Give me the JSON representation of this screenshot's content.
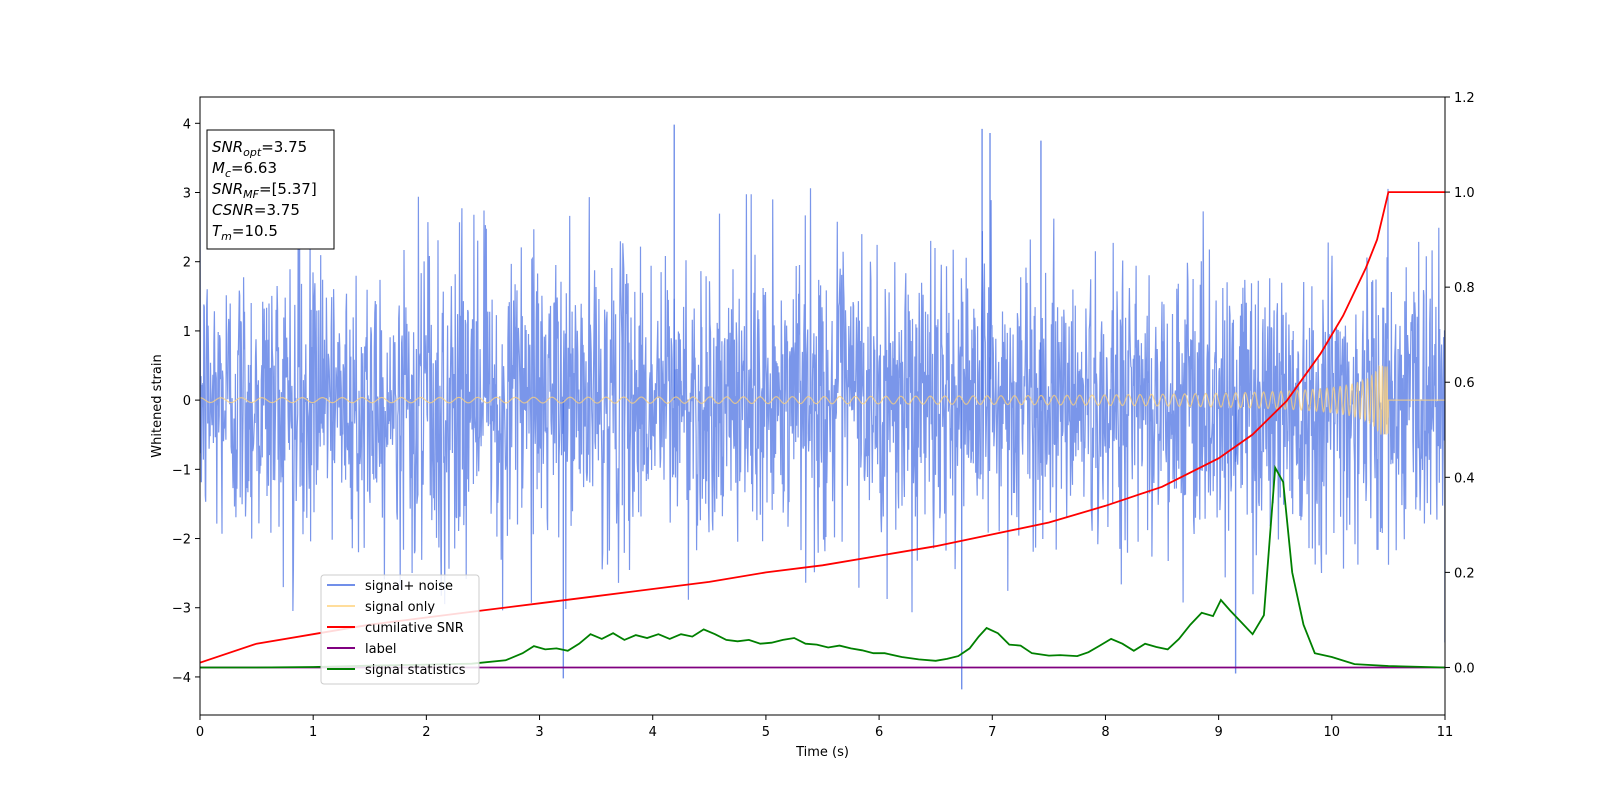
{
  "chart_data": {
    "type": "line",
    "title": "",
    "xlabel": "Time (s)",
    "ylabel": "Whitened strain",
    "xlim": [
      0,
      11
    ],
    "ylim_left": [
      -4.55,
      4.38
    ],
    "ylim_right": [
      -0.1,
      1.2
    ],
    "x_ticks": [
      "0",
      "1",
      "2",
      "3",
      "4",
      "5",
      "6",
      "7",
      "8",
      "9",
      "10",
      "11"
    ],
    "y_ticks_left": [
      "−4",
      "−3",
      "−2",
      "−1",
      "0",
      "1",
      "2",
      "3",
      "4"
    ],
    "y_ticks_right": [
      "0.0",
      "0.2",
      "0.4",
      "0.6",
      "0.8",
      "1.0",
      "1.2"
    ],
    "grid": false,
    "legend_position": "lower-left",
    "annotation": {
      "lines": [
        {
          "base": "SNR",
          "sub": "opt",
          "rest": "=3.75"
        },
        {
          "base": "M",
          "sub": "c",
          "rest": "=6.63"
        },
        {
          "base": "SNR",
          "sub": "MF",
          "rest": "=[5.37]"
        },
        {
          "base": "CSNR",
          "sub": "",
          "rest": "=3.75"
        },
        {
          "base": "T",
          "sub": "m",
          "rest": "=10.5"
        }
      ]
    },
    "series": [
      {
        "name": "signal+ noise",
        "axis": "left",
        "color": "#4169e1",
        "style": "noise",
        "amplitude_envelope": 2.6,
        "notable_spikes": [
          {
            "x": 4.19,
            "y": 3.98
          },
          {
            "x": 6.91,
            "y": 3.92
          },
          {
            "x": 6.98,
            "y": 3.86
          },
          {
            "x": 7.43,
            "y": 3.75
          },
          {
            "x": 6.73,
            "y": -4.18
          },
          {
            "x": 3.21,
            "y": -4.02
          },
          {
            "x": 9.15,
            "y": -3.95
          },
          {
            "x": 11.0,
            "y": -3.5
          }
        ]
      },
      {
        "name": "signal only",
        "axis": "left",
        "color": "#ffd27a",
        "style": "chirp",
        "end_time": 10.5,
        "max_amplitude": 0.5
      },
      {
        "name": "cumilative SNR",
        "axis": "right",
        "color": "#ff0000",
        "x": [
          0,
          0.5,
          1,
          1.5,
          2,
          2.5,
          3,
          3.5,
          4,
          4.5,
          5,
          5.5,
          6,
          6.5,
          7,
          7.5,
          8,
          8.5,
          9,
          9.3,
          9.6,
          9.9,
          10.1,
          10.3,
          10.4,
          10.45,
          10.5,
          11
        ],
        "y": [
          0.01,
          0.05,
          0.07,
          0.09,
          0.105,
          0.12,
          0.135,
          0.15,
          0.165,
          0.18,
          0.2,
          0.215,
          0.235,
          0.255,
          0.28,
          0.305,
          0.34,
          0.38,
          0.44,
          0.49,
          0.56,
          0.66,
          0.74,
          0.84,
          0.9,
          0.95,
          1.0,
          1.0
        ]
      },
      {
        "name": "label",
        "axis": "right",
        "color": "#800080",
        "x": [
          0,
          11
        ],
        "y": [
          0,
          0
        ]
      },
      {
        "name": "signal statistics",
        "axis": "right",
        "color": "#008000",
        "x": [
          0,
          0.5,
          1,
          1.5,
          2,
          2.4,
          2.7,
          2.85,
          2.95,
          3.05,
          3.15,
          3.25,
          3.35,
          3.45,
          3.55,
          3.65,
          3.75,
          3.85,
          3.95,
          4.05,
          4.15,
          4.25,
          4.35,
          4.45,
          4.55,
          4.65,
          4.75,
          4.85,
          4.95,
          5.05,
          5.15,
          5.25,
          5.35,
          5.45,
          5.55,
          5.65,
          5.75,
          5.85,
          5.95,
          6.05,
          6.2,
          6.35,
          6.5,
          6.6,
          6.7,
          6.8,
          6.88,
          6.95,
          7.05,
          7.15,
          7.25,
          7.35,
          7.5,
          7.6,
          7.75,
          7.85,
          7.95,
          8.05,
          8.15,
          8.25,
          8.35,
          8.45,
          8.55,
          8.65,
          8.75,
          8.85,
          8.95,
          9.02,
          9.1,
          9.2,
          9.3,
          9.4,
          9.5,
          9.57,
          9.65,
          9.75,
          9.85,
          10,
          10.2,
          10.5,
          11
        ],
        "y": [
          0,
          0,
          0.001,
          0.004,
          0.006,
          0.008,
          0.015,
          0.03,
          0.045,
          0.038,
          0.04,
          0.035,
          0.05,
          0.07,
          0.06,
          0.072,
          0.058,
          0.068,
          0.062,
          0.07,
          0.06,
          0.07,
          0.065,
          0.08,
          0.07,
          0.058,
          0.055,
          0.058,
          0.05,
          0.052,
          0.058,
          0.062,
          0.05,
          0.048,
          0.042,
          0.046,
          0.04,
          0.036,
          0.03,
          0.03,
          0.022,
          0.017,
          0.014,
          0.018,
          0.024,
          0.04,
          0.065,
          0.083,
          0.072,
          0.048,
          0.046,
          0.03,
          0.025,
          0.026,
          0.024,
          0.032,
          0.046,
          0.06,
          0.05,
          0.035,
          0.05,
          0.043,
          0.038,
          0.06,
          0.09,
          0.115,
          0.108,
          0.142,
          0.12,
          0.095,
          0.07,
          0.11,
          0.42,
          0.39,
          0.2,
          0.09,
          0.03,
          0.022,
          0.007,
          0.003,
          0
        ]
      }
    ]
  }
}
